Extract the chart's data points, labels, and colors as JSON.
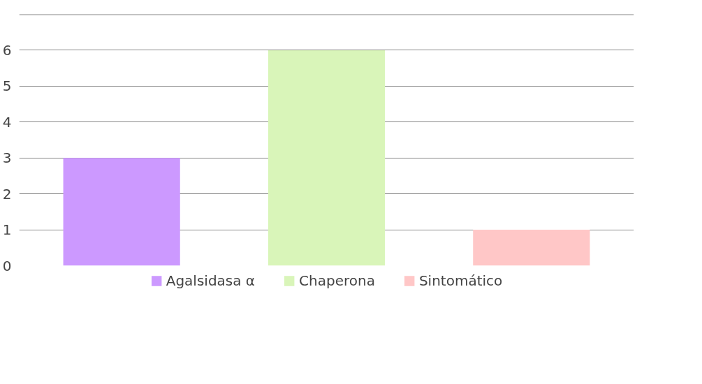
{
  "chart_data": {
    "type": "bar",
    "categories": [
      null,
      null,
      null
    ],
    "series": [
      {
        "name": "Agalsidasa α",
        "color": "#cc99ff",
        "values": [
          3,
          null,
          null
        ]
      },
      {
        "name": "Chaperona",
        "color": "#d9f5b9",
        "values": [
          null,
          6,
          null
        ]
      },
      {
        "name": "Sintomático",
        "color": "#ffc7c7",
        "values": [
          null,
          null,
          1
        ]
      }
    ],
    "ylim": [
      0,
      7
    ],
    "yticks": [
      0,
      1,
      2,
      3,
      4,
      5,
      6,
      {
        "value": 7,
        "label": null
      }
    ],
    "grid": "y",
    "legend": "bottom",
    "tick_labels": "y"
  }
}
